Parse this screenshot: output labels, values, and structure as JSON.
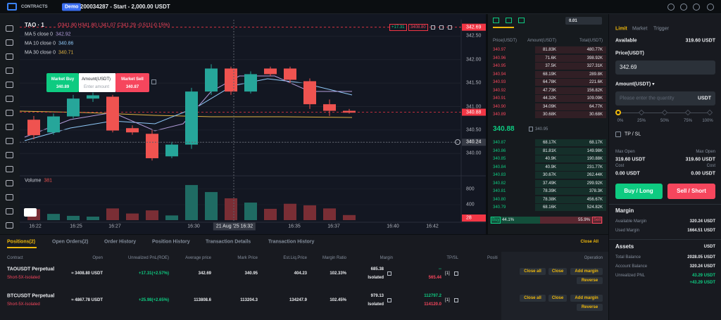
{
  "topbar": {
    "brand": "CONTRACTS",
    "badge": "Demo",
    "account": "200034287 - Start - 2,000.00 USDT"
  },
  "chart": {
    "type": "candlestick",
    "symbol": "TAO · 1",
    "ohlc": "O341.80 H341.80 L341.07 C341.29 -0.511(-0.15%)",
    "ma": [
      {
        "label": "MA 5 close 0",
        "value": "342.92",
        "color": "#b39ddb"
      },
      {
        "label": "MA 10 close 0",
        "value": "340.86",
        "color": "#90caf9"
      },
      {
        "label": "MA 30 close 0",
        "value": "340.71",
        "color": "#e0b341"
      }
    ],
    "position_label": {
      "pnl": "+17.31",
      "size": "3408.80"
    },
    "open": [
      340.72,
      340.45,
      340.79,
      341.17,
      341.21,
      340.54,
      340.42,
      339.94,
      340.19,
      341.32,
      341.81,
      341.32,
      341.81,
      341.81,
      341.54,
      341.05,
      340.91
    ],
    "high": [
      340.8,
      340.85,
      341.25,
      341.3,
      341.25,
      340.6,
      340.5,
      340.25,
      341.4,
      341.9,
      341.85,
      341.75,
      341.85,
      341.85,
      341.6,
      341.15,
      340.95
    ],
    "low": [
      340.3,
      340.4,
      340.75,
      341.1,
      340.45,
      340.4,
      339.85,
      339.9,
      340.1,
      341.25,
      341.25,
      341.28,
      341.65,
      341.5,
      340.95,
      340.8,
      340.85
    ],
    "close": [
      340.39,
      340.79,
      341.17,
      341.24,
      340.49,
      340.45,
      339.9,
      340.19,
      341.32,
      341.81,
      341.32,
      341.69,
      341.69,
      341.57,
      341.05,
      340.91,
      340.87
    ],
    "ylim": [
      339.6,
      342.82
    ],
    "yticks": [
      {
        "value": 340,
        "label": "340.00"
      },
      {
        "value": 340.5,
        "label": "340.50"
      },
      {
        "value": 341,
        "label": "341.00"
      },
      {
        "value": 341.5,
        "label": "341.50"
      },
      {
        "value": 342,
        "label": "342.00"
      },
      {
        "value": 342.5,
        "label": "342.50"
      }
    ],
    "price_tags": [
      {
        "value": 342.69,
        "label": "342.69",
        "color": "#f23645"
      },
      {
        "value": 340.88,
        "label": "340.88",
        "color": "#f23645"
      },
      {
        "value": 340.24,
        "label": "340.24",
        "color": "#363a45"
      }
    ],
    "time_labels": [
      "16:22",
      "16:25",
      "16:27",
      "16:30",
      "16:35",
      "16:37",
      "16:40",
      "16:42"
    ],
    "crosshair_time": "21 Aug '25  16:32",
    "trade_widget": {
      "buy": "Market Buy",
      "buy_price": "340.89",
      "amount": "Amount(USDT)",
      "placeholder": "Enter amount",
      "sell": "Market Sell",
      "sell_price": "340.87"
    },
    "volume": {
      "label": "Volume",
      "value": "381",
      "values": [
        280,
        160,
        110,
        90,
        300,
        170,
        250,
        120,
        900,
        720,
        560,
        450,
        290,
        420,
        380,
        300,
        130
      ],
      "ylim": [
        0,
        1100
      ],
      "yticks": [
        400,
        800
      ],
      "tag": "28"
    }
  },
  "orderbook": {
    "headers": [
      "Price(USDT)",
      "Amount(USDT)",
      "Total(USDT)"
    ],
    "step": "0.01",
    "asks": [
      [
        "340.97",
        "81.83K",
        "480.77K"
      ],
      [
        "340.96",
        "71.6K",
        "398.92K"
      ],
      [
        "340.95",
        "37.5K",
        "327.31K"
      ],
      [
        "340.94",
        "68.19K",
        "289.8K"
      ],
      [
        "340.93",
        "64.78K",
        "221.6K"
      ],
      [
        "340.92",
        "47.73K",
        "156.82K"
      ],
      [
        "340.91",
        "44.32K",
        "109.09K"
      ],
      [
        "340.90",
        "34.09K",
        "64.77K"
      ],
      [
        "340.89",
        "30.68K",
        "30.68K"
      ]
    ],
    "last": "340.88",
    "mark": "340.95",
    "bids": [
      [
        "340.87",
        "68.17K",
        "68.17K"
      ],
      [
        "340.86",
        "81.81K",
        "149.98K"
      ],
      [
        "340.85",
        "40.9K",
        "190.88K"
      ],
      [
        "340.84",
        "40.9K",
        "231.77K"
      ],
      [
        "340.83",
        "30.67K",
        "262.44K"
      ],
      [
        "340.82",
        "37.49K",
        "299.92K"
      ],
      [
        "340.81",
        "78.39K",
        "378.3K"
      ],
      [
        "340.80",
        "78.38K",
        "456.67K"
      ],
      [
        "340.79",
        "68.16K",
        "524.82K"
      ]
    ],
    "buy": "Buy",
    "sell": "Sell",
    "buy_pct": 44.1,
    "sell_pct": 55.9,
    "buy_label": "44.1%",
    "sell_label": "55.9%"
  },
  "order": {
    "tabs": [
      "Limit",
      "Market",
      "Trigger"
    ],
    "available_label": "Available",
    "available": "319.60 USDT",
    "price_label": "Price(USDT)",
    "price": "342.69",
    "amount_label": "Amount(USDT) ▾",
    "amount_placeholder": "Please enter the quantity",
    "amount_unit": "USDT",
    "slider": [
      "0%",
      "25%",
      "50%",
      "75%",
      "100%"
    ],
    "tpsl": "TP / SL",
    "max_open_label": "Max Open",
    "max_open_long": "319.60 USDT",
    "max_open_short": "319.60 USDT",
    "cost_label": "Cost",
    "cost_long": "0.00 USDT",
    "cost_short": "0.00 USDT",
    "buy": "Buy / Long",
    "sell": "Sell / Short"
  },
  "margin": {
    "title": "Margin",
    "rows": [
      [
        "Available Margin",
        "320.24 USDT"
      ],
      [
        "Used Margin",
        "1664.51 USDT"
      ]
    ]
  },
  "assets": {
    "title": "Assets",
    "unit": "USDT",
    "rows": [
      [
        "Total Balance",
        "2028.05 USDT"
      ],
      [
        "Account Balance",
        "320.24 USDT"
      ]
    ],
    "pnl_label": "Unrealized PNL",
    "pnl": "43.29 USDT",
    "pnl_change": "+43.29 USDT"
  },
  "positions": {
    "tabs": [
      "Positions(2)",
      "Open Orders(2)",
      "Order History",
      "Position History",
      "Transaction Details",
      "Transaction History"
    ],
    "close_all": "Close All",
    "columns": [
      "Contract",
      "Open",
      "Unrealized PnL(ROE)",
      "Average price",
      "Mark Price",
      "Est.Liq.Price",
      "Margin Ratio",
      "Margin",
      "TP/SL",
      "Positi",
      "Operation"
    ],
    "rows": [
      {
        "contract": "TAOUSDT Perpetual",
        "mode": "Short-5X-Isolated",
        "open": "≈ 3408.80 USDT",
        "pnl": "+17.31(+2.57%)",
        "avg": "342.69",
        "mark": "340.95",
        "liq": "404.23",
        "ratio": "102.33%",
        "margin": "685.38",
        "margin_mode": "Isolated",
        "tp": "--",
        "sl": "565.44",
        "count": "[1]"
      },
      {
        "contract": "BTCUSDT Perpetual",
        "mode": "Short-5X-Isolated",
        "open": "≈ 4867.78 USDT",
        "pnl": "+25.98(+2.65%)",
        "avg": "113808.6",
        "mark": "113204.3",
        "liq": "134247.9",
        "ratio": "102.45%",
        "margin": "979.13",
        "margin_mode": "Isolated",
        "tp": "112797.2",
        "sl": "114120.0",
        "count": "[1]"
      }
    ],
    "actions": [
      "Close all",
      "Close",
      "Add margin",
      "Reverse"
    ]
  }
}
